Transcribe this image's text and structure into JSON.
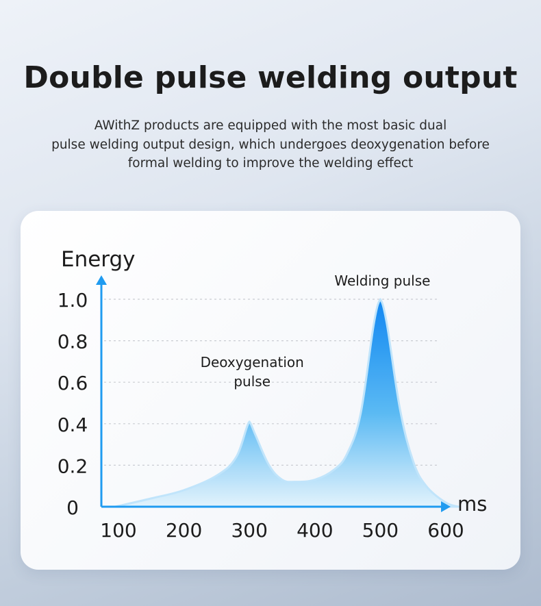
{
  "header": {
    "title": "Double pulse welding output",
    "subtitle_lines": [
      "AWithZ products are equipped with the most basic dual",
      "pulse welding output design, which undergoes deoxygenation before",
      "formal welding to improve the welding effect"
    ]
  },
  "colors": {
    "axis": "#1f9bf0",
    "fill_top": "#0a84f2",
    "fill_bottom": "#e3f3fc",
    "grid": "#c9ccd2",
    "text": "#1c1c1c"
  },
  "chart_data": {
    "type": "area",
    "ylabel": "Energy",
    "xlabel": "ms",
    "x_ticks": [
      "100",
      "200",
      "300",
      "400",
      "500",
      "600"
    ],
    "y_ticks": [
      "0",
      "0.2",
      "0.4",
      "0.6",
      "0.8",
      "1.0"
    ],
    "xlim": [
      100,
      600
    ],
    "ylim": [
      0,
      1.0
    ],
    "grid": true,
    "x": [
      95,
      150,
      200,
      250,
      280,
      300,
      310,
      330,
      350,
      370,
      400,
      430,
      450,
      470,
      490,
      500,
      510,
      530,
      550,
      570,
      600,
      620
    ],
    "y": [
      0.0,
      0.04,
      0.08,
      0.15,
      0.24,
      0.41,
      0.34,
      0.2,
      0.13,
      0.12,
      0.13,
      0.18,
      0.26,
      0.45,
      0.88,
      1.0,
      0.88,
      0.47,
      0.22,
      0.1,
      0.02,
      0.0
    ],
    "annotations": [
      {
        "lines": [
          "Welding pulse"
        ],
        "x": 500,
        "y": 1.0
      },
      {
        "lines": [
          "Deoxygenation",
          "pulse"
        ],
        "x": 300,
        "y": 0.41
      }
    ]
  }
}
